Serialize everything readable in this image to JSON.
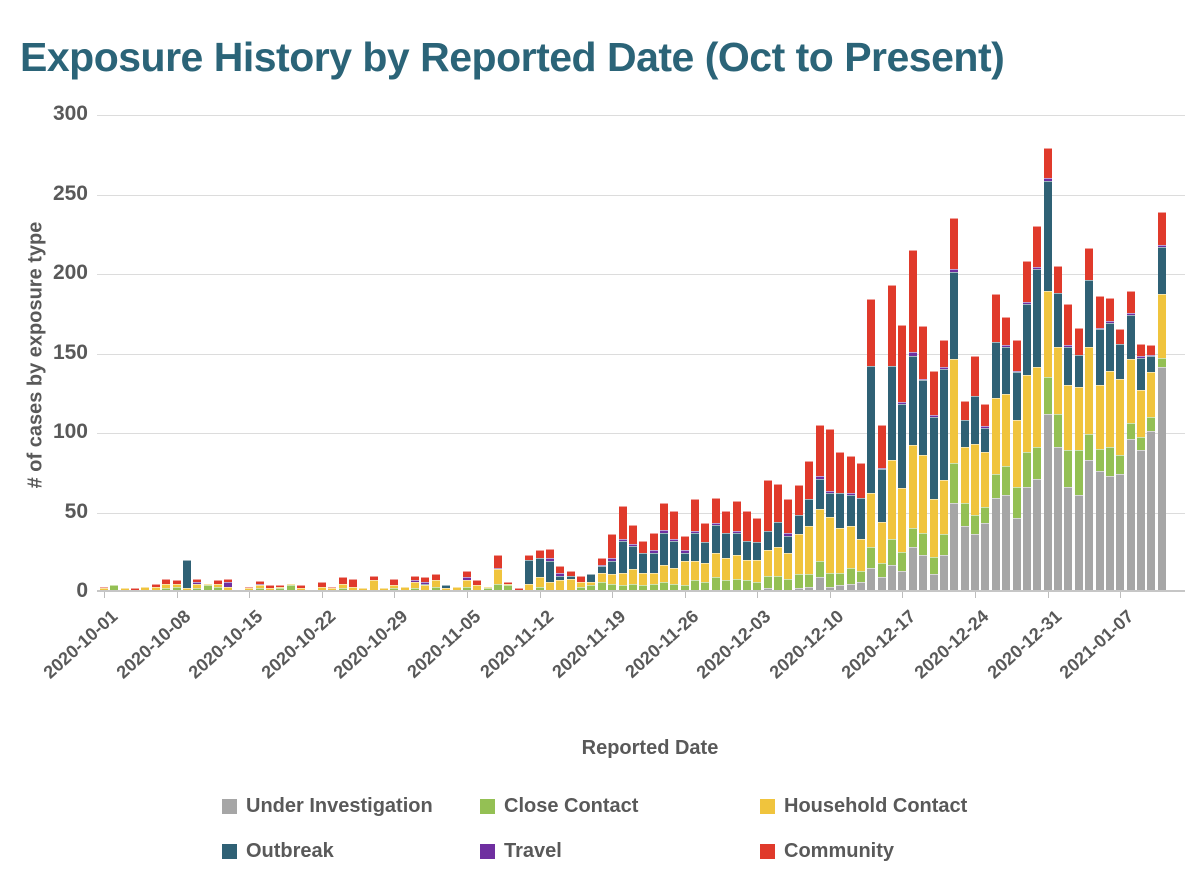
{
  "title": "Exposure History by Reported Date (Oct to Present)",
  "colors": {
    "title_text": "#2b6478",
    "axis_text": "#595959",
    "gridline": "#dcdcdc",
    "under_investigation": "#a6a6a6",
    "close_contact": "#94c054",
    "household_contact": "#f0c43d",
    "outbreak": "#2f6175",
    "travel": "#6f2fa0",
    "community": "#e03a2b"
  },
  "chart_data": {
    "type": "bar",
    "stacked": true,
    "title": "Exposure History by Reported Date (Oct to Present)",
    "xlabel": "Reported Date",
    "ylabel": "# of cases by exposure type",
    "ylim": [
      0,
      300
    ],
    "yticks": [
      0,
      50,
      100,
      150,
      200,
      250,
      300
    ],
    "grid": "horizontal",
    "legend_position": "bottom",
    "bar_interval": "daily",
    "n_bars": 103,
    "start_date": "2020-10-01",
    "x_tick_every": 7,
    "x_tick_labels": [
      "2020-10-01",
      "2020-10-08",
      "2020-10-15",
      "2020-10-22",
      "2020-10-29",
      "2020-11-05",
      "2020-11-12",
      "2020-11-19",
      "2020-11-26",
      "2020-12-03",
      "2020-12-10",
      "2020-12-17",
      "2020-12-24",
      "2020-12-31",
      "2021-01-07"
    ],
    "series": [
      {
        "name": "Under Investigation",
        "color": "#a6a6a6",
        "values": [
          0,
          0,
          0,
          0,
          0,
          0,
          0,
          0,
          0,
          0,
          0,
          0,
          0,
          0,
          0,
          0,
          0,
          0,
          0,
          0,
          0,
          0,
          0,
          0,
          0,
          0,
          0,
          0,
          0,
          0,
          0,
          0,
          0,
          0,
          0,
          0,
          0,
          0,
          0,
          0,
          0,
          0,
          0,
          0,
          0,
          0,
          0,
          0,
          0,
          0,
          0,
          0,
          0,
          0,
          0,
          0,
          0,
          0,
          0,
          0,
          0,
          0,
          0,
          0,
          1,
          0,
          0,
          1,
          2,
          8,
          2,
          3,
          4,
          5,
          14,
          8,
          16,
          12,
          27,
          22,
          10,
          22,
          55,
          40,
          35,
          42,
          58,
          60,
          45,
          65,
          70,
          111,
          90,
          65,
          60,
          82,
          75,
          72,
          73,
          95,
          88,
          100,
          140
        ]
      },
      {
        "name": "Close Contact",
        "color": "#94c054",
        "values": [
          0,
          3,
          0,
          0,
          0,
          0,
          1,
          2,
          0,
          1,
          3,
          2,
          0,
          0,
          0,
          1,
          0,
          1,
          3,
          0,
          0,
          0,
          0,
          1,
          0,
          0,
          0,
          0,
          1,
          0,
          1,
          0,
          2,
          0,
          0,
          2,
          0,
          1,
          4,
          3,
          0,
          0,
          2,
          0,
          0,
          0,
          2,
          3,
          5,
          4,
          3,
          4,
          3,
          4,
          5,
          4,
          3,
          6,
          5,
          8,
          6,
          7,
          6,
          5,
          8,
          9,
          7,
          9,
          8,
          10,
          9,
          8,
          10,
          7,
          13,
          9,
          16,
          12,
          12,
          14,
          11,
          13,
          25,
          15,
          12,
          10,
          15,
          18,
          20,
          22,
          20,
          23,
          21,
          23,
          28,
          16,
          14,
          18,
          12,
          10,
          8,
          9,
          6
        ]
      },
      {
        "name": "Household Contact",
        "color": "#f0c43d",
        "values": [
          1,
          0,
          1,
          0,
          2,
          2,
          3,
          2,
          1,
          3,
          1,
          2,
          2,
          0,
          1,
          2,
          1,
          1,
          1,
          1,
          0,
          2,
          1,
          3,
          2,
          1,
          6,
          1,
          2,
          2,
          4,
          3,
          4,
          1,
          2,
          4,
          3,
          1,
          9,
          1,
          0,
          4,
          6,
          5,
          6,
          7,
          3,
          2,
          6,
          6,
          8,
          9,
          8,
          7,
          11,
          10,
          15,
          12,
          12,
          15,
          14,
          15,
          13,
          14,
          16,
          18,
          16,
          25,
          30,
          33,
          35,
          28,
          26,
          20,
          34,
          26,
          50,
          40,
          52,
          49,
          36,
          34,
          65,
          35,
          45,
          35,
          48,
          45,
          42,
          48,
          50,
          54,
          42,
          41,
          40,
          55,
          40,
          48,
          48,
          40,
          30,
          28,
          40
        ]
      },
      {
        "name": "Outbreak",
        "color": "#2f6175",
        "values": [
          0,
          0,
          0,
          0,
          0,
          0,
          0,
          0,
          18,
          0,
          0,
          0,
          0,
          0,
          0,
          0,
          0,
          0,
          0,
          0,
          0,
          0,
          0,
          0,
          0,
          0,
          0,
          0,
          0,
          0,
          0,
          1,
          0,
          2,
          0,
          0,
          0,
          0,
          0,
          0,
          0,
          15,
          12,
          13,
          3,
          2,
          0,
          5,
          4,
          8,
          20,
          15,
          12,
          12,
          20,
          17,
          5,
          18,
          13,
          18,
          16,
          14,
          12,
          11,
          12,
          16,
          11,
          12,
          17,
          19,
          15,
          22,
          20,
          26,
          80,
          33,
          59,
          53,
          56,
          47,
          52,
          70,
          55,
          17,
          30,
          15,
          35,
          30,
          30,
          45,
          62,
          69,
          34,
          24,
          20,
          42,
          35,
          30,
          22,
          28,
          20,
          10,
          30
        ]
      },
      {
        "name": "Travel",
        "color": "#6f2fa0",
        "values": [
          0,
          0,
          0,
          0,
          0,
          0,
          0,
          0,
          0,
          1,
          0,
          0,
          3,
          0,
          0,
          1,
          0,
          0,
          0,
          0,
          0,
          0,
          0,
          0,
          0,
          0,
          0,
          0,
          0,
          0,
          1,
          1,
          0,
          0,
          0,
          2,
          0,
          0,
          1,
          0,
          0,
          0,
          0,
          2,
          2,
          0,
          0,
          0,
          1,
          2,
          1,
          1,
          0,
          2,
          2,
          1,
          2,
          1,
          0,
          1,
          0,
          1,
          0,
          0,
          0,
          0,
          2,
          0,
          0,
          2,
          1,
          0,
          1,
          0,
          0,
          1,
          0,
          1,
          3,
          1,
          1,
          1,
          2,
          0,
          0,
          1,
          0,
          1,
          1,
          1,
          1,
          2,
          0,
          1,
          0,
          0,
          1,
          1,
          0,
          1,
          1,
          1,
          1
        ]
      },
      {
        "name": "Community",
        "color": "#e03a2b",
        "values": [
          1,
          0,
          0,
          1,
          0,
          2,
          3,
          2,
          0,
          2,
          0,
          2,
          2,
          0,
          1,
          2,
          2,
          1,
          0,
          2,
          0,
          3,
          1,
          4,
          5,
          0,
          3,
          0,
          4,
          0,
          3,
          3,
          4,
          0,
          0,
          4,
          3,
          0,
          8,
          1,
          1,
          3,
          5,
          6,
          4,
          3,
          4,
          0,
          4,
          15,
          21,
          12,
          8,
          11,
          17,
          18,
          9,
          20,
          12,
          16,
          14,
          19,
          19,
          15,
          32,
          24,
          21,
          19,
          24,
          32,
          39,
          26,
          23,
          22,
          42,
          27,
          51,
          49,
          64,
          33,
          28,
          17,
          32,
          12,
          25,
          14,
          30,
          18,
          19,
          26,
          26,
          19,
          17,
          26,
          17,
          20,
          20,
          15,
          9,
          14,
          8,
          6,
          21
        ]
      }
    ]
  }
}
